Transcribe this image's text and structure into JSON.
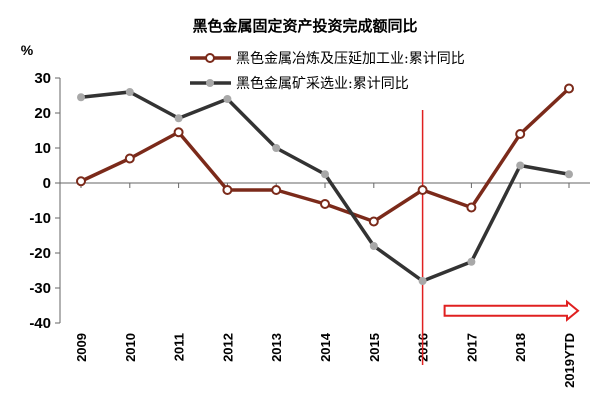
{
  "chart_data": {
    "type": "line",
    "title": "黑色金属固定资产投资完成额同比",
    "ylabel": "%",
    "xlabel": "",
    "ylim": [
      -40,
      30
    ],
    "yticks": [
      30,
      20,
      10,
      0,
      -10,
      -20,
      -30,
      -40
    ],
    "categories": [
      "2009",
      "2010",
      "2011",
      "2012",
      "2013",
      "2014",
      "2015",
      "2016",
      "2017",
      "2018",
      "2019YTD"
    ],
    "series": [
      {
        "name": "黑色金属冶炼及压延加工业:累计同比",
        "color": "#7b2a1a",
        "marker": "hollow-circle",
        "values": [
          0.5,
          7,
          14.5,
          -2,
          -2,
          -6,
          -11,
          -2,
          -7,
          14,
          27
        ]
      },
      {
        "name": "黑色金属矿采选业:累计同比",
        "color": "#333333",
        "marker": "gray-dot",
        "values": [
          24.5,
          26,
          18.5,
          24,
          10,
          2.5,
          -18,
          -28,
          -22.5,
          5,
          2.5
        ]
      }
    ],
    "annotations": [
      {
        "type": "vertical-line",
        "x": "2016",
        "color": "#e02020"
      },
      {
        "type": "right-arrow",
        "from": "2016",
        "to": "2019YTD",
        "y": -36.5,
        "color": "#e02020"
      }
    ],
    "grid": false,
    "legend": "top-right"
  }
}
